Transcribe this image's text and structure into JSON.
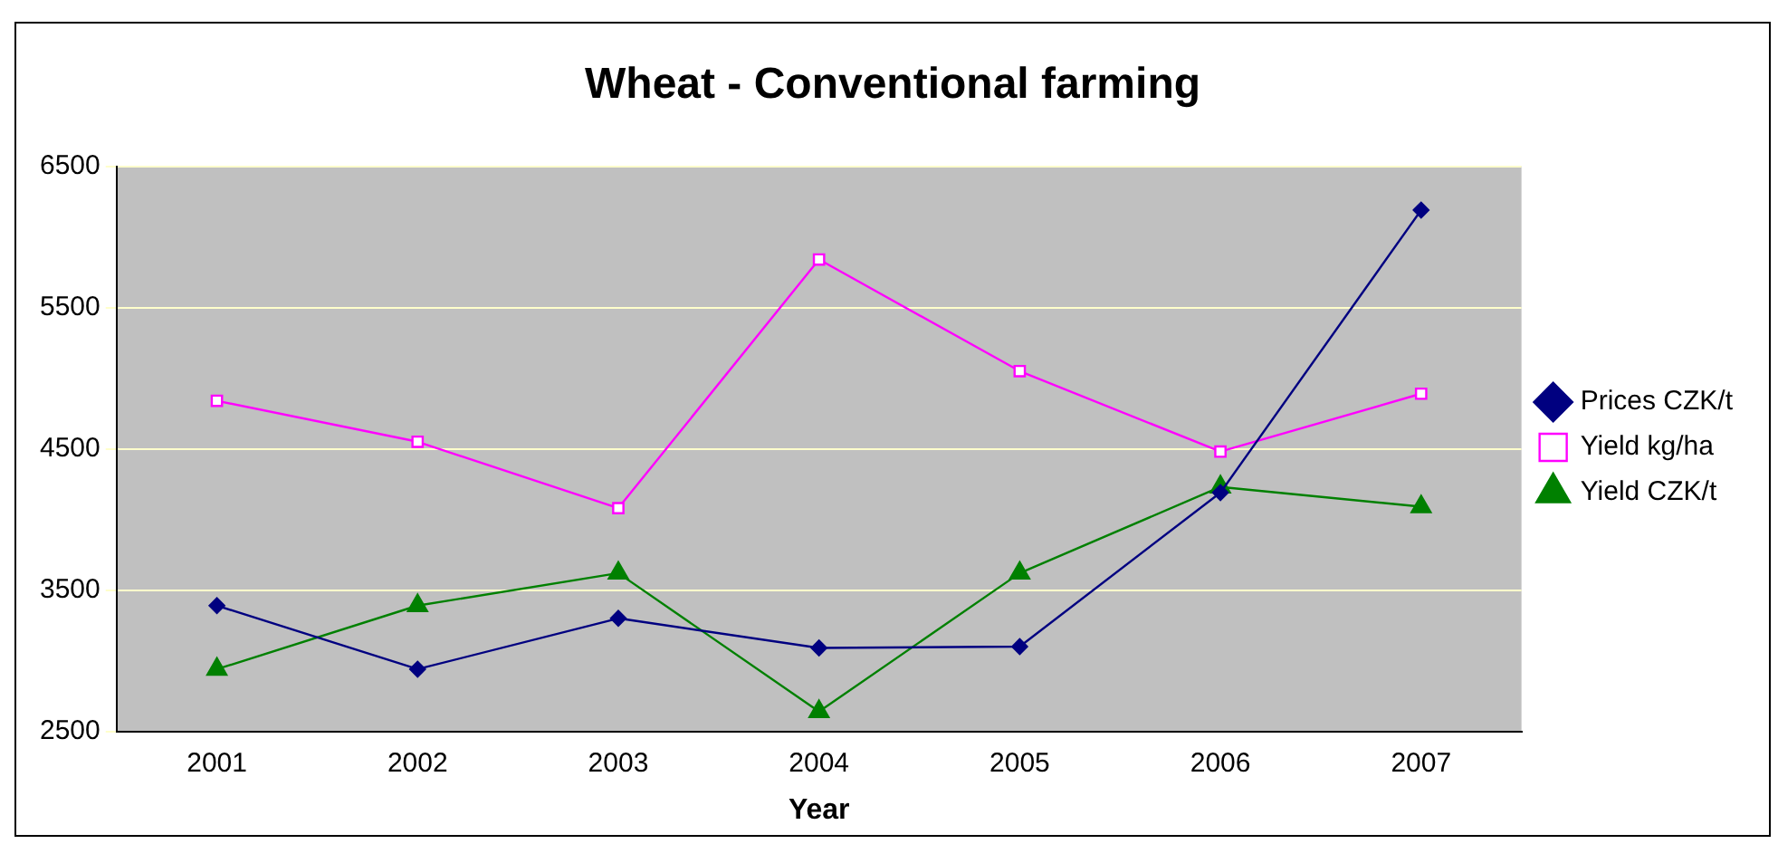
{
  "chart_data": {
    "type": "line",
    "title": "Wheat - Conventional farming",
    "xlabel": "Year",
    "categories": [
      "2001",
      "2002",
      "2003",
      "2004",
      "2005",
      "2006",
      "2007"
    ],
    "series": [
      {
        "name": "Prices CZK/t",
        "color": "#000080",
        "marker": "diamond",
        "values": [
          3390,
          2940,
          3300,
          3090,
          3100,
          4190,
          6190
        ]
      },
      {
        "name": "Yield kg/ha",
        "color": "#ff00ff",
        "marker": "square",
        "values": [
          4840,
          4550,
          4080,
          5840,
          5050,
          4480,
          4890
        ]
      },
      {
        "name": "Yield CZK/t",
        "color": "#008000",
        "marker": "triangle",
        "values": [
          2940,
          3390,
          3620,
          2640,
          3620,
          4230,
          4090
        ]
      }
    ],
    "ylim": [
      2500,
      6500
    ],
    "yticks": [
      2500,
      3500,
      4500,
      5500,
      6500
    ],
    "grid": "y",
    "legend": "right"
  }
}
